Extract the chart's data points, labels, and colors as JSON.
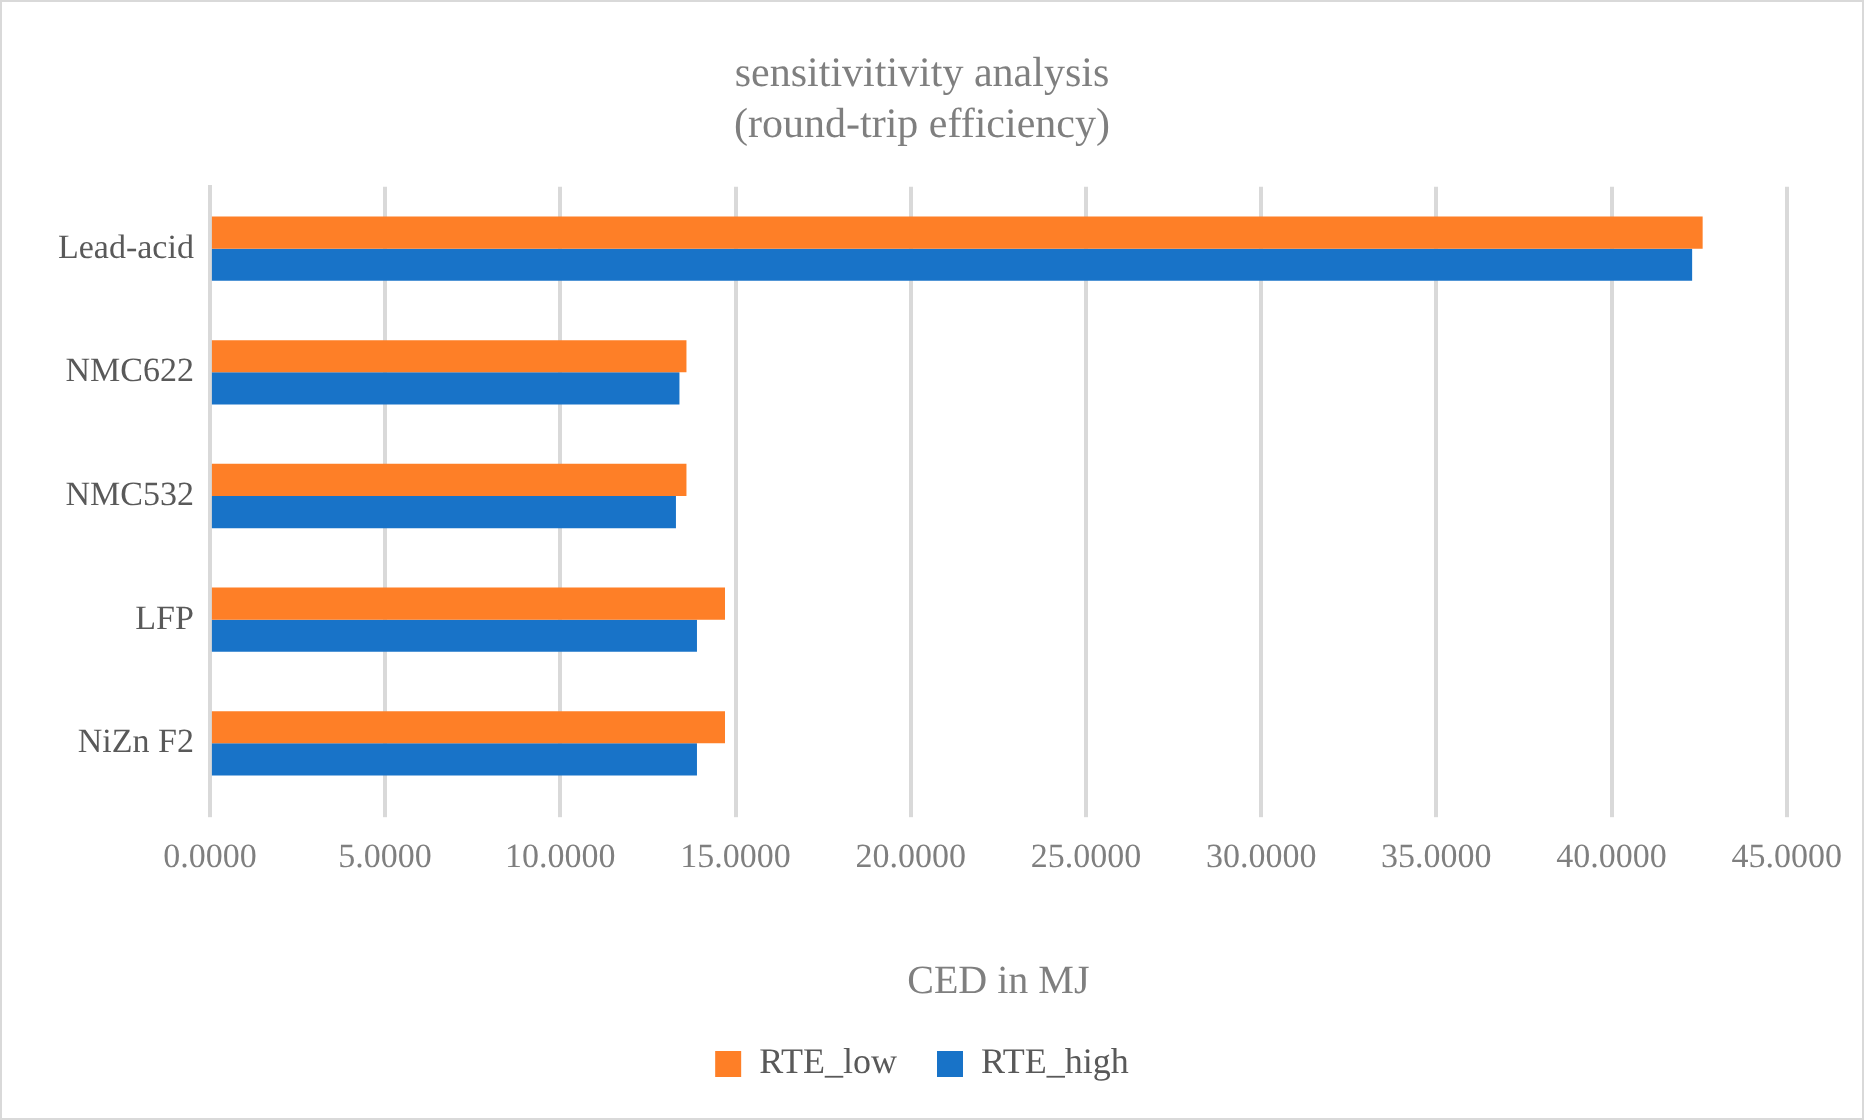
{
  "chart_data": {
    "type": "bar",
    "orientation": "horizontal",
    "title": "sensitivitivity analysis\n(round-trip efficiency)",
    "xlabel": "CED in MJ",
    "categories": [
      "Lead-acid",
      "NMC622",
      "NMC532",
      "LFP",
      "NiZn F2"
    ],
    "series": [
      {
        "name": "RTE_low",
        "color": "#fe7f27",
        "values": [
          42.6,
          13.6,
          13.6,
          14.7,
          14.7
        ]
      },
      {
        "name": "RTE_high",
        "color": "#1873c8",
        "values": [
          42.3,
          13.4,
          13.3,
          13.9,
          13.9
        ]
      }
    ],
    "xlim": [
      0,
      45
    ],
    "xticks": [
      {
        "value": 0,
        "label": "0.0000"
      },
      {
        "value": 5,
        "label": "5.0000"
      },
      {
        "value": 10,
        "label": "10.0000"
      },
      {
        "value": 15,
        "label": "15.0000"
      },
      {
        "value": 20,
        "label": "20.0000"
      },
      {
        "value": 25,
        "label": "25.0000"
      },
      {
        "value": 30,
        "label": "30.0000"
      },
      {
        "value": 35,
        "label": "35.0000"
      },
      {
        "value": 40,
        "label": "40.0000"
      },
      {
        "value": 45,
        "label": "45.0000"
      }
    ],
    "grid": "x",
    "legend": "bottom"
  }
}
